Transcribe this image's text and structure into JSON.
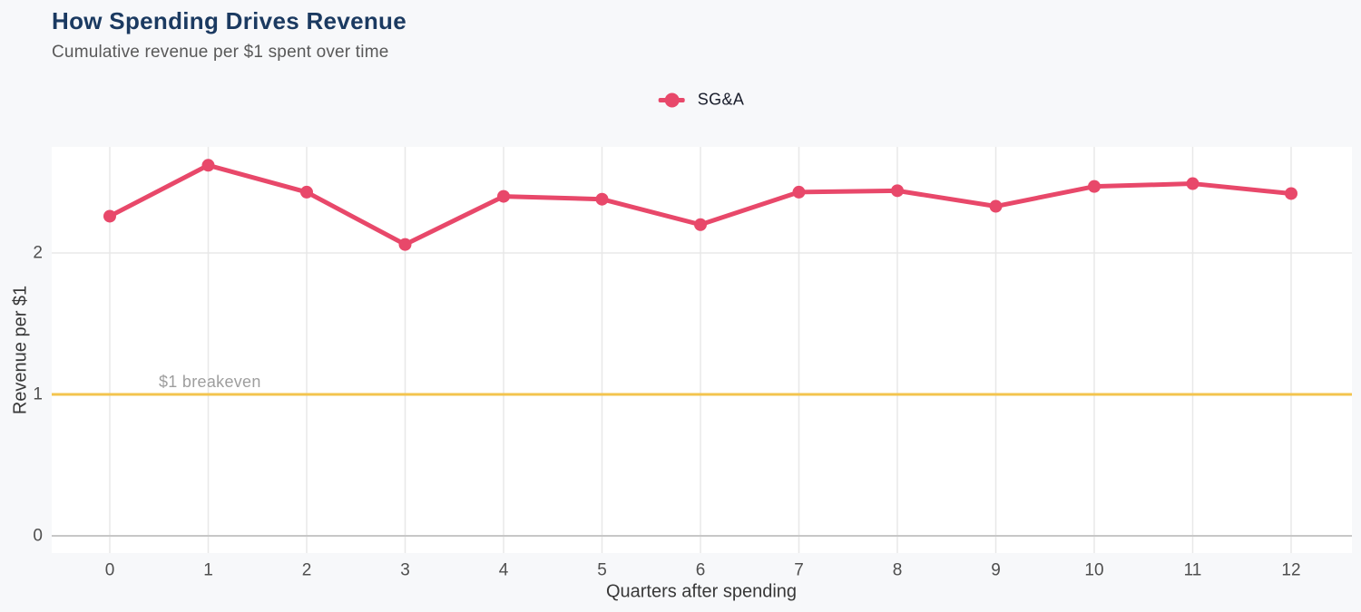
{
  "header": {
    "title": "How Spending Drives Revenue",
    "subtitle": "Cumulative revenue per $1 spent over time"
  },
  "legend": {
    "items": [
      {
        "label": "SG&A",
        "color": "#e8486a"
      }
    ],
    "position": "top-center"
  },
  "chart_data": {
    "type": "line",
    "title": "How Spending Drives Revenue",
    "subtitle": "Cumulative revenue per $1 spent over time",
    "xlabel": "Quarters after spending",
    "ylabel": "Revenue per $1",
    "x": [
      0,
      1,
      2,
      3,
      4,
      5,
      6,
      7,
      8,
      9,
      10,
      11,
      12
    ],
    "series": [
      {
        "name": "SG&A",
        "color": "#e8486a",
        "values": [
          2.26,
          2.62,
          2.43,
          2.06,
          2.4,
          2.38,
          2.2,
          2.43,
          2.44,
          2.33,
          2.47,
          2.49,
          2.42
        ]
      }
    ],
    "xticks": [
      0,
      1,
      2,
      3,
      4,
      5,
      6,
      7,
      8,
      9,
      10,
      11,
      12
    ],
    "yticks": [
      0,
      1,
      2
    ],
    "xlim": [
      -0.6,
      12.6
    ],
    "ylim": [
      -0.12,
      2.75
    ],
    "grid": true,
    "legend_position": "top",
    "reference_line": {
      "y": 1,
      "label": "$1 breakeven",
      "color": "#f3c44e"
    }
  },
  "colors": {
    "page_bg": "#f7f8fa",
    "plot_bg": "#ffffff",
    "grid": "#e8e8e8",
    "zero_line": "#c7c7c7",
    "series": "#e8486a",
    "reference": "#f3c44e",
    "title": "#1b3a61",
    "subtitle": "#595959",
    "tick_label": "#4f4f4f",
    "axis_label": "#383838",
    "annotation": "#9e9e9e"
  }
}
